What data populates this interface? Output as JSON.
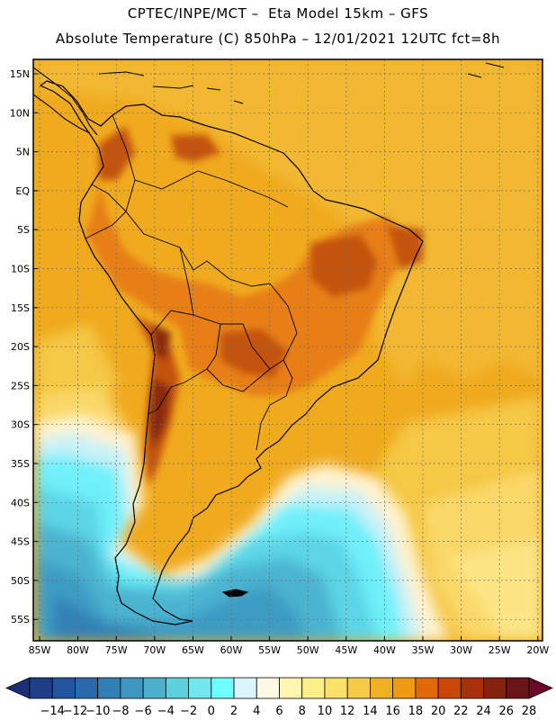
{
  "header": {
    "title_line1": "CPTEC/INPE/MCT –  Eta Model 15km – GFS",
    "title_line2": "Absolute Temperature (C) 850hPa – 12/01/2021 12UTC fct=8h"
  },
  "map": {
    "lat_labels": [
      "15N",
      "10N",
      "5N",
      "EQ",
      "5S",
      "10S",
      "15S",
      "20S",
      "25S",
      "30S",
      "35S",
      "40S",
      "45S",
      "50S",
      "55S"
    ],
    "lon_labels": [
      "85W",
      "80W",
      "75W",
      "70W",
      "65W",
      "60W",
      "55W",
      "50W",
      "45W",
      "40W",
      "35W",
      "30W",
      "25W",
      "20W"
    ]
  },
  "legend": {
    "labels": [
      "−14",
      "−12",
      "−10",
      "−8",
      "−6",
      "−4",
      "−2",
      "0",
      "2",
      "4",
      "6",
      "8",
      "10",
      "12",
      "14",
      "16",
      "18",
      "20",
      "22",
      "24",
      "26",
      "28"
    ],
    "colors": [
      "#1c3f88",
      "#22549f",
      "#2a6aab",
      "#3080b5",
      "#3d97c0",
      "#4cb0cc",
      "#5ecfdc",
      "#73e8ec",
      "#70ffff",
      "#d9f5fa",
      "#fff8e5",
      "#fff7b0",
      "#ffef88",
      "#fbe06a",
      "#f5cb47",
      "#f0b024",
      "#ee9a12",
      "#e06a0a",
      "#c94807",
      "#a8300a",
      "#85220d",
      "#6a1518"
    ],
    "low_arrow_color": "#1a2f78",
    "high_arrow_color": "#6a0a26"
  },
  "colors": {
    "warm_field": "#f0aa1e",
    "hot_field": "#c95a10",
    "cold_field": "#4cc0dc"
  }
}
